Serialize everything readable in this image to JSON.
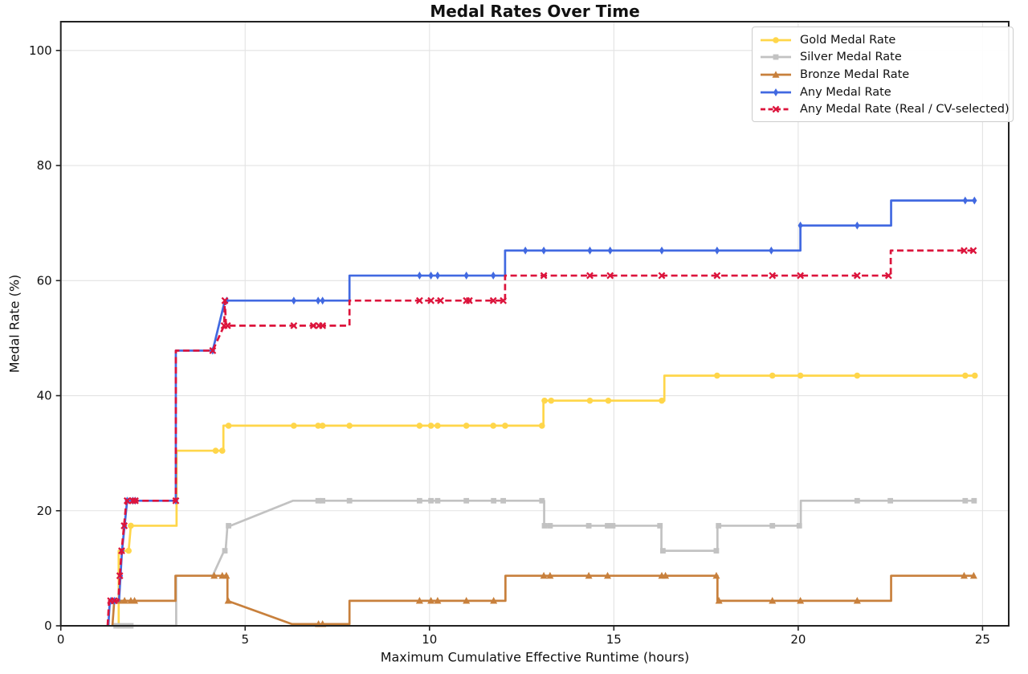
{
  "chart_data": {
    "type": "line",
    "style": "step-like cumulative rate curves",
    "title": "Medal Rates Over Time",
    "xlabel": "Maximum Cumulative Effective Runtime (hours)",
    "ylabel": "Medal Rate (%)",
    "xlim": [
      0,
      25.71
    ],
    "ylim": [
      0,
      105
    ],
    "xticks": [
      0,
      5,
      10,
      15,
      20,
      25
    ],
    "yticks": [
      0,
      20,
      40,
      60,
      80,
      100
    ],
    "grid": true,
    "legend_position": "upper right",
    "series": [
      {
        "name": "Gold Medal Rate",
        "color": "#FFD64A",
        "marker": "circle",
        "dash": null,
        "points": [
          [
            1.57,
            0
          ],
          [
            1.57,
            13.04
          ],
          [
            1.84,
            13.04
          ],
          [
            1.9,
            17.39
          ],
          [
            3.14,
            17.39
          ],
          [
            3.14,
            30.43
          ],
          [
            4.41,
            30.43
          ],
          [
            4.41,
            34.78
          ],
          [
            13.09,
            34.78
          ],
          [
            13.09,
            39.13
          ],
          [
            16.37,
            39.13
          ],
          [
            16.37,
            43.48
          ],
          [
            24.79,
            43.48
          ]
        ],
        "markers": [
          [
            1.84,
            13.04
          ],
          [
            1.9,
            17.39
          ],
          [
            4.2,
            30.43
          ],
          [
            4.38,
            30.43
          ],
          [
            4.55,
            34.78
          ],
          [
            6.32,
            34.78
          ],
          [
            6.98,
            34.78
          ],
          [
            7.1,
            34.78
          ],
          [
            7.83,
            34.78
          ],
          [
            9.73,
            34.78
          ],
          [
            10.04,
            34.78
          ],
          [
            10.22,
            34.78
          ],
          [
            11.0,
            34.78
          ],
          [
            11.73,
            34.78
          ],
          [
            12.05,
            34.78
          ],
          [
            13.05,
            34.78
          ],
          [
            13.12,
            39.13
          ],
          [
            13.3,
            39.13
          ],
          [
            14.35,
            39.13
          ],
          [
            14.85,
            39.13
          ],
          [
            16.3,
            39.13
          ],
          [
            17.8,
            43.48
          ],
          [
            19.3,
            43.48
          ],
          [
            20.06,
            43.48
          ],
          [
            21.6,
            43.48
          ],
          [
            24.53,
            43.48
          ],
          [
            24.79,
            43.48
          ]
        ]
      },
      {
        "name": "Silver Medal Rate",
        "color": "#C2C2C2",
        "marker": "square",
        "dash": null,
        "points": [
          [
            1.45,
            0
          ],
          [
            3.13,
            0
          ],
          [
            3.13,
            8.7
          ],
          [
            4.12,
            8.7
          ],
          [
            4.43,
            13.04
          ],
          [
            4.47,
            13.04
          ],
          [
            4.52,
            17.39
          ],
          [
            4.6,
            17.39
          ],
          [
            6.3,
            21.74
          ],
          [
            13.11,
            21.74
          ],
          [
            13.11,
            17.39
          ],
          [
            16.29,
            17.39
          ],
          [
            16.29,
            13.04
          ],
          [
            17.81,
            13.04
          ],
          [
            17.81,
            17.39
          ],
          [
            20.07,
            17.39
          ],
          [
            20.07,
            21.74
          ],
          [
            24.84,
            21.74
          ]
        ],
        "markers": [
          [
            1.5,
            0
          ],
          [
            1.62,
            0
          ],
          [
            1.76,
            0
          ],
          [
            1.9,
            0
          ],
          [
            4.45,
            13.04
          ],
          [
            4.55,
            17.39
          ],
          [
            6.98,
            21.74
          ],
          [
            7.1,
            21.74
          ],
          [
            7.83,
            21.74
          ],
          [
            9.73,
            21.74
          ],
          [
            10.04,
            21.74
          ],
          [
            10.22,
            21.74
          ],
          [
            11.0,
            21.74
          ],
          [
            11.74,
            21.74
          ],
          [
            12.0,
            21.74
          ],
          [
            13.05,
            21.74
          ],
          [
            13.12,
            17.39
          ],
          [
            13.27,
            17.39
          ],
          [
            14.32,
            17.39
          ],
          [
            14.83,
            17.39
          ],
          [
            14.97,
            17.39
          ],
          [
            16.25,
            17.39
          ],
          [
            16.33,
            13.04
          ],
          [
            17.78,
            13.04
          ],
          [
            17.84,
            17.39
          ],
          [
            19.3,
            17.39
          ],
          [
            20.03,
            17.39
          ],
          [
            21.6,
            21.74
          ],
          [
            22.5,
            21.74
          ],
          [
            24.53,
            21.74
          ],
          [
            24.77,
            21.74
          ]
        ]
      },
      {
        "name": "Bronze Medal Rate",
        "color": "#C8803C",
        "marker": "triangle",
        "dash": null,
        "points": [
          [
            1.4,
            0
          ],
          [
            1.45,
            4.35
          ],
          [
            3.11,
            4.35
          ],
          [
            3.11,
            8.7
          ],
          [
            4.52,
            8.7
          ],
          [
            4.52,
            4.35
          ],
          [
            6.27,
            0.3
          ],
          [
            7.83,
            0.3
          ],
          [
            7.83,
            4.35
          ],
          [
            12.06,
            4.35
          ],
          [
            12.06,
            8.7
          ],
          [
            17.81,
            8.7
          ],
          [
            17.81,
            4.35
          ],
          [
            22.52,
            4.35
          ],
          [
            22.52,
            8.7
          ],
          [
            24.8,
            8.7
          ]
        ],
        "markers": [
          [
            1.58,
            4.35
          ],
          [
            1.73,
            4.35
          ],
          [
            1.9,
            4.35
          ],
          [
            2.0,
            4.35
          ],
          [
            4.16,
            8.7
          ],
          [
            4.38,
            8.7
          ],
          [
            4.49,
            8.7
          ],
          [
            4.54,
            4.35
          ],
          [
            6.99,
            0.3
          ],
          [
            7.1,
            0.3
          ],
          [
            9.73,
            4.35
          ],
          [
            10.04,
            4.35
          ],
          [
            10.22,
            4.35
          ],
          [
            11.0,
            4.35
          ],
          [
            11.74,
            4.35
          ],
          [
            13.1,
            8.7
          ],
          [
            13.27,
            8.7
          ],
          [
            14.32,
            8.7
          ],
          [
            14.83,
            8.7
          ],
          [
            16.3,
            8.7
          ],
          [
            16.4,
            8.7
          ],
          [
            17.78,
            8.7
          ],
          [
            17.85,
            4.35
          ],
          [
            19.3,
            4.35
          ],
          [
            20.06,
            4.35
          ],
          [
            21.6,
            4.35
          ],
          [
            24.5,
            8.7
          ],
          [
            24.76,
            8.7
          ]
        ]
      },
      {
        "name": "Any Medal Rate",
        "color": "#4169E1",
        "marker": "thin-diamond",
        "dash": null,
        "points": [
          [
            1.29,
            0
          ],
          [
            1.33,
            4.35
          ],
          [
            1.58,
            4.35
          ],
          [
            1.62,
            8.7
          ],
          [
            1.66,
            13.04
          ],
          [
            1.8,
            21.74
          ],
          [
            3.12,
            21.74
          ],
          [
            3.12,
            47.83
          ],
          [
            4.12,
            47.83
          ],
          [
            4.45,
            56.52
          ],
          [
            7.83,
            56.52
          ],
          [
            7.83,
            60.87
          ],
          [
            12.05,
            60.87
          ],
          [
            12.05,
            65.22
          ],
          [
            20.06,
            65.22
          ],
          [
            20.06,
            69.57
          ],
          [
            22.52,
            69.57
          ],
          [
            22.52,
            73.91
          ],
          [
            24.82,
            73.91
          ]
        ],
        "markers": [
          [
            1.36,
            4.35
          ],
          [
            1.46,
            4.35
          ],
          [
            1.62,
            8.7
          ],
          [
            1.66,
            13.04
          ],
          [
            1.73,
            17.39
          ],
          [
            1.8,
            21.74
          ],
          [
            1.95,
            21.74
          ],
          [
            2.02,
            21.74
          ],
          [
            3.12,
            21.74
          ],
          [
            4.12,
            47.83
          ],
          [
            4.5,
            56.52
          ],
          [
            6.32,
            56.52
          ],
          [
            6.98,
            56.52
          ],
          [
            7.1,
            56.52
          ],
          [
            9.73,
            60.87
          ],
          [
            10.04,
            60.87
          ],
          [
            10.22,
            60.87
          ],
          [
            11.0,
            60.87
          ],
          [
            11.73,
            60.87
          ],
          [
            12.6,
            65.22
          ],
          [
            13.1,
            65.22
          ],
          [
            14.35,
            65.22
          ],
          [
            14.9,
            65.22
          ],
          [
            16.3,
            65.22
          ],
          [
            17.8,
            65.22
          ],
          [
            19.27,
            65.22
          ],
          [
            20.06,
            69.57
          ],
          [
            21.6,
            69.57
          ],
          [
            24.53,
            73.91
          ],
          [
            24.78,
            73.91
          ]
        ]
      },
      {
        "name": "Any Medal Rate (Real / CV-selected)",
        "color": "#DC143C",
        "marker": "x",
        "dash": [
          8,
          4.5
        ],
        "points": [
          [
            1.27,
            0
          ],
          [
            1.31,
            4.35
          ],
          [
            1.56,
            4.35
          ],
          [
            1.6,
            8.7
          ],
          [
            1.65,
            13.04
          ],
          [
            1.78,
            21.74
          ],
          [
            3.12,
            21.74
          ],
          [
            3.12,
            47.83
          ],
          [
            4.12,
            47.83
          ],
          [
            4.43,
            52.17
          ],
          [
            4.45,
            56.52
          ],
          [
            4.48,
            52.17
          ],
          [
            7.83,
            52.17
          ],
          [
            7.83,
            56.52
          ],
          [
            12.05,
            56.52
          ],
          [
            12.05,
            60.87
          ],
          [
            22.51,
            60.87
          ],
          [
            22.51,
            65.22
          ],
          [
            24.78,
            65.22
          ]
        ],
        "markers": [
          [
            1.35,
            4.35
          ],
          [
            1.45,
            4.35
          ],
          [
            1.6,
            8.7
          ],
          [
            1.65,
            13.04
          ],
          [
            1.72,
            17.39
          ],
          [
            1.8,
            21.74
          ],
          [
            1.95,
            21.74
          ],
          [
            2.02,
            21.74
          ],
          [
            3.12,
            21.74
          ],
          [
            4.12,
            47.83
          ],
          [
            4.43,
            52.17
          ],
          [
            4.45,
            56.52
          ],
          [
            4.52,
            52.17
          ],
          [
            6.32,
            52.17
          ],
          [
            6.85,
            52.17
          ],
          [
            7.0,
            52.17
          ],
          [
            7.1,
            52.17
          ],
          [
            9.73,
            56.52
          ],
          [
            10.04,
            56.52
          ],
          [
            10.3,
            56.52
          ],
          [
            11.0,
            56.52
          ],
          [
            11.08,
            56.52
          ],
          [
            11.73,
            56.52
          ],
          [
            12.0,
            56.52
          ],
          [
            13.1,
            60.87
          ],
          [
            14.35,
            60.87
          ],
          [
            14.9,
            60.87
          ],
          [
            16.3,
            60.87
          ],
          [
            17.8,
            60.87
          ],
          [
            19.3,
            60.87
          ],
          [
            20.06,
            60.87
          ],
          [
            21.6,
            60.87
          ],
          [
            22.45,
            60.87
          ],
          [
            24.5,
            65.22
          ],
          [
            24.75,
            65.22
          ]
        ]
      }
    ]
  }
}
